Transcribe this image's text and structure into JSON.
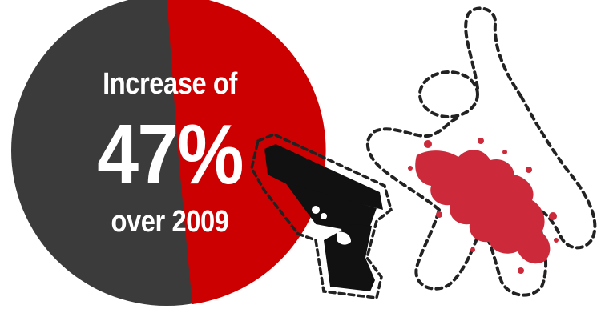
{
  "infographic": {
    "line1": "Increase of",
    "percent": "47%",
    "line2": "over 2009",
    "increase_value": 47
  },
  "colors": {
    "dark_half": "#3b3b3b",
    "red_half": "#cc0000",
    "blood": "#cc2a3a",
    "outline": "#222222"
  },
  "icons": [
    "pie-circle",
    "handgun-icon",
    "body-outline-icon",
    "blood-splatter-icon"
  ]
}
